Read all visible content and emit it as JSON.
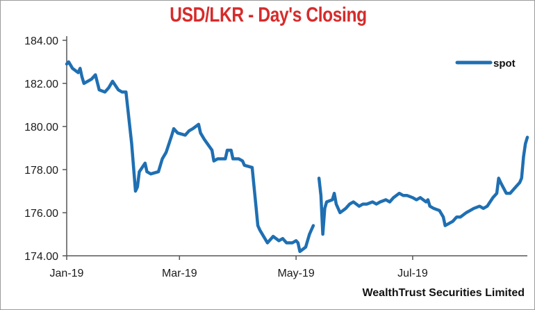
{
  "chart_data": {
    "type": "line",
    "title": "USD/LKR - Day's Closing",
    "xlabel": "",
    "ylabel": "",
    "ylim": [
      174,
      184
    ],
    "y_ticks": [
      "174.00",
      "176.00",
      "178.00",
      "180.00",
      "182.00",
      "184.00"
    ],
    "y_tick_values": [
      174,
      176,
      178,
      180,
      182,
      184
    ],
    "x_ticks": [
      "Jan-19",
      "Mar-19",
      "May-19",
      "Jul-19"
    ],
    "x_tick_dates": [
      "2019-01-01",
      "2019-03-01",
      "2019-05-01",
      "2019-07-01"
    ],
    "xlim": [
      "2019-01-01",
      "2019-08-30"
    ],
    "grid": false,
    "legend": {
      "position": "top-right",
      "entries": [
        "spot"
      ]
    },
    "series": [
      {
        "name": "spot",
        "color": "#1f6fb2",
        "segments": [
          [
            [
              "2019-01-01",
              182.9
            ],
            [
              "2019-01-02",
              183.0
            ],
            [
              "2019-01-04",
              182.7
            ],
            [
              "2019-01-07",
              182.5
            ],
            [
              "2019-01-08",
              182.7
            ],
            [
              "2019-01-09",
              182.3
            ],
            [
              "2019-01-10",
              182.0
            ],
            [
              "2019-01-14",
              182.2
            ],
            [
              "2019-01-16",
              182.4
            ],
            [
              "2019-01-18",
              181.7
            ],
            [
              "2019-01-21",
              181.6
            ],
            [
              "2019-01-23",
              181.8
            ],
            [
              "2019-01-25",
              182.1
            ],
            [
              "2019-01-28",
              181.7
            ],
            [
              "2019-01-30",
              181.6
            ],
            [
              "2019-02-01",
              181.6
            ],
            [
              "2019-02-04",
              179.2
            ],
            [
              "2019-02-06",
              177.0
            ],
            [
              "2019-02-07",
              177.2
            ],
            [
              "2019-02-08",
              177.9
            ],
            [
              "2019-02-11",
              178.3
            ],
            [
              "2019-02-12",
              177.9
            ],
            [
              "2019-02-14",
              177.8
            ],
            [
              "2019-02-18",
              177.9
            ],
            [
              "2019-02-20",
              178.5
            ],
            [
              "2019-02-22",
              178.8
            ],
            [
              "2019-02-25",
              179.6
            ],
            [
              "2019-02-26",
              179.9
            ],
            [
              "2019-02-28",
              179.7
            ],
            [
              "2019-03-04",
              179.6
            ],
            [
              "2019-03-06",
              179.8
            ],
            [
              "2019-03-08",
              179.9
            ],
            [
              "2019-03-11",
              180.1
            ],
            [
              "2019-03-12",
              179.7
            ],
            [
              "2019-03-14",
              179.4
            ],
            [
              "2019-03-18",
              178.9
            ],
            [
              "2019-03-19",
              178.4
            ],
            [
              "2019-03-21",
              178.5
            ],
            [
              "2019-03-25",
              178.5
            ],
            [
              "2019-03-26",
              178.9
            ],
            [
              "2019-03-28",
              178.9
            ],
            [
              "2019-03-29",
              178.5
            ],
            [
              "2019-04-01",
              178.5
            ],
            [
              "2019-04-03",
              178.4
            ],
            [
              "2019-04-04",
              178.2
            ],
            [
              "2019-04-08",
              178.1
            ],
            [
              "2019-04-10",
              176.3
            ],
            [
              "2019-04-11",
              175.4
            ],
            [
              "2019-04-12",
              175.2
            ],
            [
              "2019-04-16",
              174.6
            ],
            [
              "2019-04-18",
              174.8
            ],
            [
              "2019-04-19",
              174.9
            ],
            [
              "2019-04-22",
              174.7
            ],
            [
              "2019-04-24",
              174.8
            ],
            [
              "2019-04-26",
              174.6
            ],
            [
              "2019-04-29",
              174.6
            ],
            [
              "2019-05-01",
              174.7
            ],
            [
              "2019-05-02",
              174.6
            ],
            [
              "2019-05-03",
              174.2
            ],
            [
              "2019-05-06",
              174.4
            ],
            [
              "2019-05-08",
              175.0
            ],
            [
              "2019-05-10",
              175.4
            ]
          ],
          [
            [
              "2019-05-13",
              177.6
            ],
            [
              "2019-05-14",
              176.8
            ],
            [
              "2019-05-15",
              175.0
            ],
            [
              "2019-05-16",
              176.2
            ],
            [
              "2019-05-17",
              176.5
            ],
            [
              "2019-05-20",
              176.6
            ],
            [
              "2019-05-21",
              176.9
            ],
            [
              "2019-05-22",
              176.4
            ],
            [
              "2019-05-24",
              176.0
            ],
            [
              "2019-05-27",
              176.2
            ],
            [
              "2019-05-29",
              176.4
            ],
            [
              "2019-05-31",
              176.5
            ],
            [
              "2019-06-03",
              176.3
            ],
            [
              "2019-06-05",
              176.4
            ],
            [
              "2019-06-07",
              176.4
            ],
            [
              "2019-06-10",
              176.5
            ],
            [
              "2019-06-12",
              176.4
            ],
            [
              "2019-06-14",
              176.5
            ],
            [
              "2019-06-17",
              176.6
            ],
            [
              "2019-06-19",
              176.5
            ],
            [
              "2019-06-21",
              176.7
            ],
            [
              "2019-06-24",
              176.9
            ],
            [
              "2019-06-26",
              176.8
            ],
            [
              "2019-06-28",
              176.8
            ],
            [
              "2019-07-01",
              176.7
            ],
            [
              "2019-07-03",
              176.6
            ],
            [
              "2019-07-05",
              176.7
            ],
            [
              "2019-07-08",
              176.5
            ],
            [
              "2019-07-09",
              176.6
            ],
            [
              "2019-07-10",
              176.3
            ],
            [
              "2019-07-12",
              176.2
            ],
            [
              "2019-07-15",
              176.1
            ],
            [
              "2019-07-17",
              175.8
            ],
            [
              "2019-07-18",
              175.4
            ],
            [
              "2019-07-22",
              175.6
            ],
            [
              "2019-07-24",
              175.8
            ],
            [
              "2019-07-26",
              175.8
            ],
            [
              "2019-07-29",
              176.0
            ],
            [
              "2019-07-31",
              176.1
            ],
            [
              "2019-08-02",
              176.2
            ],
            [
              "2019-08-05",
              176.3
            ],
            [
              "2019-08-07",
              176.2
            ],
            [
              "2019-08-09",
              176.3
            ],
            [
              "2019-08-12",
              176.7
            ],
            [
              "2019-08-14",
              176.9
            ],
            [
              "2019-08-15",
              177.6
            ],
            [
              "2019-08-16",
              177.4
            ],
            [
              "2019-08-19",
              176.9
            ],
            [
              "2019-08-21",
              176.9
            ],
            [
              "2019-08-23",
              177.1
            ],
            [
              "2019-08-26",
              177.4
            ],
            [
              "2019-08-27",
              177.6
            ],
            [
              "2019-08-28",
              178.6
            ],
            [
              "2019-08-29",
              179.2
            ],
            [
              "2019-08-30",
              179.5
            ]
          ]
        ]
      }
    ]
  },
  "source_note": "WealthTrust Securities Limited"
}
